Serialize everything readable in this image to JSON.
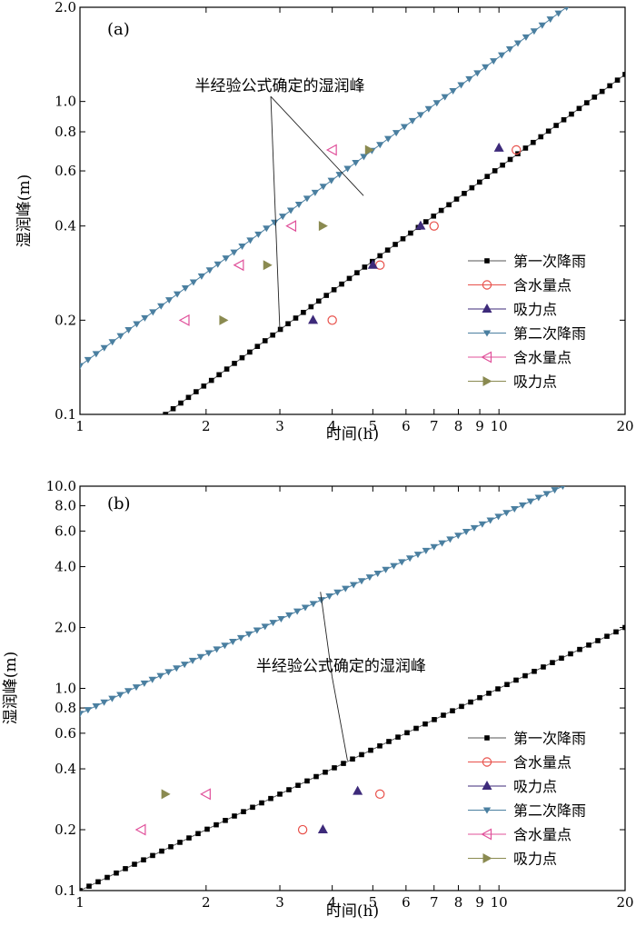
{
  "chart_data": [
    {
      "type": "scatter",
      "panel_label": "(a)",
      "xlabel": "时间(h)",
      "ylabel": "湿润峰(m)",
      "xscale": "log",
      "yscale": "log",
      "xlim": [
        1,
        20
      ],
      "ylim": [
        0.1,
        2.0
      ],
      "xticks": [
        1,
        2,
        3,
        4,
        5,
        6,
        7,
        8,
        9,
        10,
        20
      ],
      "xtick_labels": [
        "1",
        "2",
        "3",
        "4",
        "5",
        "6",
        "7",
        "8",
        "9",
        "10",
        "20"
      ],
      "yticks": [
        0.1,
        0.2,
        0.4,
        0.6,
        0.8,
        1.0,
        2.0
      ],
      "ytick_labels": [
        "0.1",
        "0.2",
        "0.4",
        "0.6",
        "0.8",
        "1.0",
        "2.0"
      ],
      "annotation": {
        "text": "半经验公式确定的湿润峰",
        "text_at": [
          3.0,
          1.08
        ],
        "targets": [
          [
            4.75,
            0.5
          ],
          [
            3.0,
            0.185
          ]
        ]
      },
      "legend_position": "bottom-right",
      "series": [
        {
          "name": "第一次降雨",
          "kind": "line-markers",
          "marker": "square",
          "color": "#000000",
          "line_color": "#555555",
          "from": [
            1.6,
            0.1
          ],
          "to": [
            20,
            1.22
          ],
          "steps": 60
        },
        {
          "name": "含水量点",
          "kind": "points",
          "marker": "circle-open",
          "color": "#e8504a",
          "points": [
            [
              4.0,
              0.2
            ],
            [
              5.2,
              0.3
            ],
            [
              7.0,
              0.4
            ],
            [
              11.0,
              0.7
            ]
          ]
        },
        {
          "name": "吸力点",
          "kind": "points",
          "marker": "triangle-up",
          "color": "#3d2a7a",
          "points": [
            [
              3.6,
              0.2
            ],
            [
              5.0,
              0.3
            ],
            [
              6.5,
              0.4
            ],
            [
              10.0,
              0.71
            ]
          ]
        },
        {
          "name": "第二次降雨",
          "kind": "line-markers",
          "marker": "triangle-down",
          "color": "#4a7fa0",
          "line_color": "#4a7fa0",
          "from": [
            1.0,
            0.143
          ],
          "to": [
            14.5,
            2.0
          ],
          "steps": 60
        },
        {
          "name": "含水量点",
          "kind": "points",
          "marker": "triangle-left-open",
          "color": "#e0509a",
          "points": [
            [
              1.78,
              0.2
            ],
            [
              2.4,
              0.3
            ],
            [
              3.2,
              0.4
            ],
            [
              4.0,
              0.7
            ]
          ]
        },
        {
          "name": "吸力点",
          "kind": "points",
          "marker": "triangle-right",
          "color": "#8a8a50",
          "points": [
            [
              2.2,
              0.2
            ],
            [
              2.8,
              0.3
            ],
            [
              3.8,
              0.4
            ],
            [
              4.9,
              0.7
            ]
          ]
        }
      ]
    },
    {
      "type": "scatter",
      "panel_label": "(b)",
      "xlabel": "时间(h)",
      "ylabel": "湿润峰(m)",
      "xscale": "log",
      "yscale": "log",
      "xlim": [
        1,
        20
      ],
      "ylim": [
        0.1,
        10.0
      ],
      "xticks": [
        1,
        2,
        3,
        4,
        5,
        6,
        7,
        8,
        9,
        10,
        20
      ],
      "xtick_labels": [
        "1",
        "2",
        "3",
        "4",
        "5",
        "6",
        "7",
        "8",
        "9",
        "10",
        "20"
      ],
      "yticks": [
        0.1,
        0.2,
        0.4,
        0.6,
        0.8,
        1.0,
        2.0,
        4.0,
        6.0,
        8.0,
        10.0
      ],
      "ytick_labels": [
        "0.1",
        "0.2",
        "0.4",
        "0.6",
        "0.8",
        "1.0",
        "2.0",
        "4.0",
        "6.0",
        "8.0",
        "10.0"
      ],
      "annotation": {
        "text": "半经验公式确定的湿润峰",
        "text_at": [
          4.2,
          1.22
        ],
        "targets": [
          [
            3.75,
            3.0
          ],
          [
            4.35,
            0.44
          ]
        ]
      },
      "legend_position": "bottom-right",
      "series": [
        {
          "name": "第一次降雨",
          "kind": "line-markers",
          "marker": "square",
          "color": "#000000",
          "line_color": "#555555",
          "from": [
            1.0,
            0.1
          ],
          "to": [
            20,
            2.0
          ],
          "steps": 60
        },
        {
          "name": "含水量点",
          "kind": "points",
          "marker": "circle-open",
          "color": "#e8504a",
          "points": [
            [
              3.4,
              0.2
            ],
            [
              5.2,
              0.3
            ]
          ]
        },
        {
          "name": "吸力点",
          "kind": "points",
          "marker": "triangle-up",
          "color": "#3d2a7a",
          "points": [
            [
              3.8,
              0.2
            ],
            [
              4.6,
              0.31
            ]
          ]
        },
        {
          "name": "第二次降雨",
          "kind": "line-markers",
          "marker": "triangle-down",
          "color": "#4a7fa0",
          "line_color": "#4a7fa0",
          "from": [
            1.0,
            0.75
          ],
          "to": [
            14.2,
            10.0
          ],
          "steps": 60
        },
        {
          "name": "含水量点",
          "kind": "points",
          "marker": "triangle-left-open",
          "color": "#e0509a",
          "points": [
            [
              1.4,
              0.2
            ],
            [
              2.0,
              0.3
            ]
          ]
        },
        {
          "name": "吸力点",
          "kind": "points",
          "marker": "triangle-right",
          "color": "#8a8a50",
          "points": [
            [
              1.6,
              0.3
            ]
          ]
        }
      ]
    }
  ]
}
